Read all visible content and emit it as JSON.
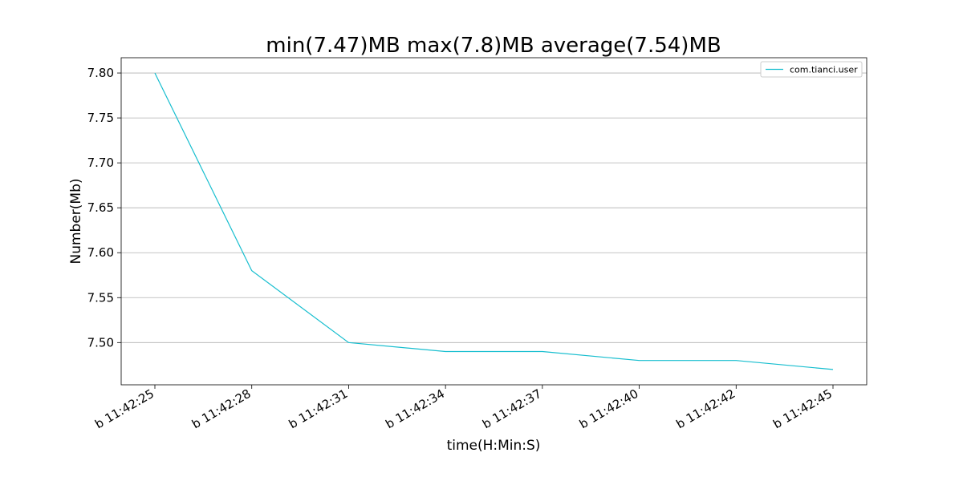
{
  "chart_data": {
    "type": "line",
    "title": "min(7.47)MB max(7.8)MB average(7.54)MB",
    "xlabel": "time(H:Min:S)",
    "ylabel": "Number(Mb)",
    "categories": [
      "b 11:42:25",
      "b 11:42:28",
      "b 11:42:31",
      "b 11:42:34",
      "b 11:42:37",
      "b 11:42:40",
      "b 11:42:42",
      "b 11:42:45"
    ],
    "series": [
      {
        "name": "com.tianci.user",
        "values": [
          7.8,
          7.58,
          7.5,
          7.49,
          7.49,
          7.48,
          7.48,
          7.47
        ],
        "color": "#17becf"
      }
    ],
    "ylim": [
      7.453,
      7.817
    ],
    "yticks": [
      7.5,
      7.55,
      7.6,
      7.65,
      7.7,
      7.75,
      7.8
    ],
    "grid": "y",
    "legend": "top-right"
  }
}
